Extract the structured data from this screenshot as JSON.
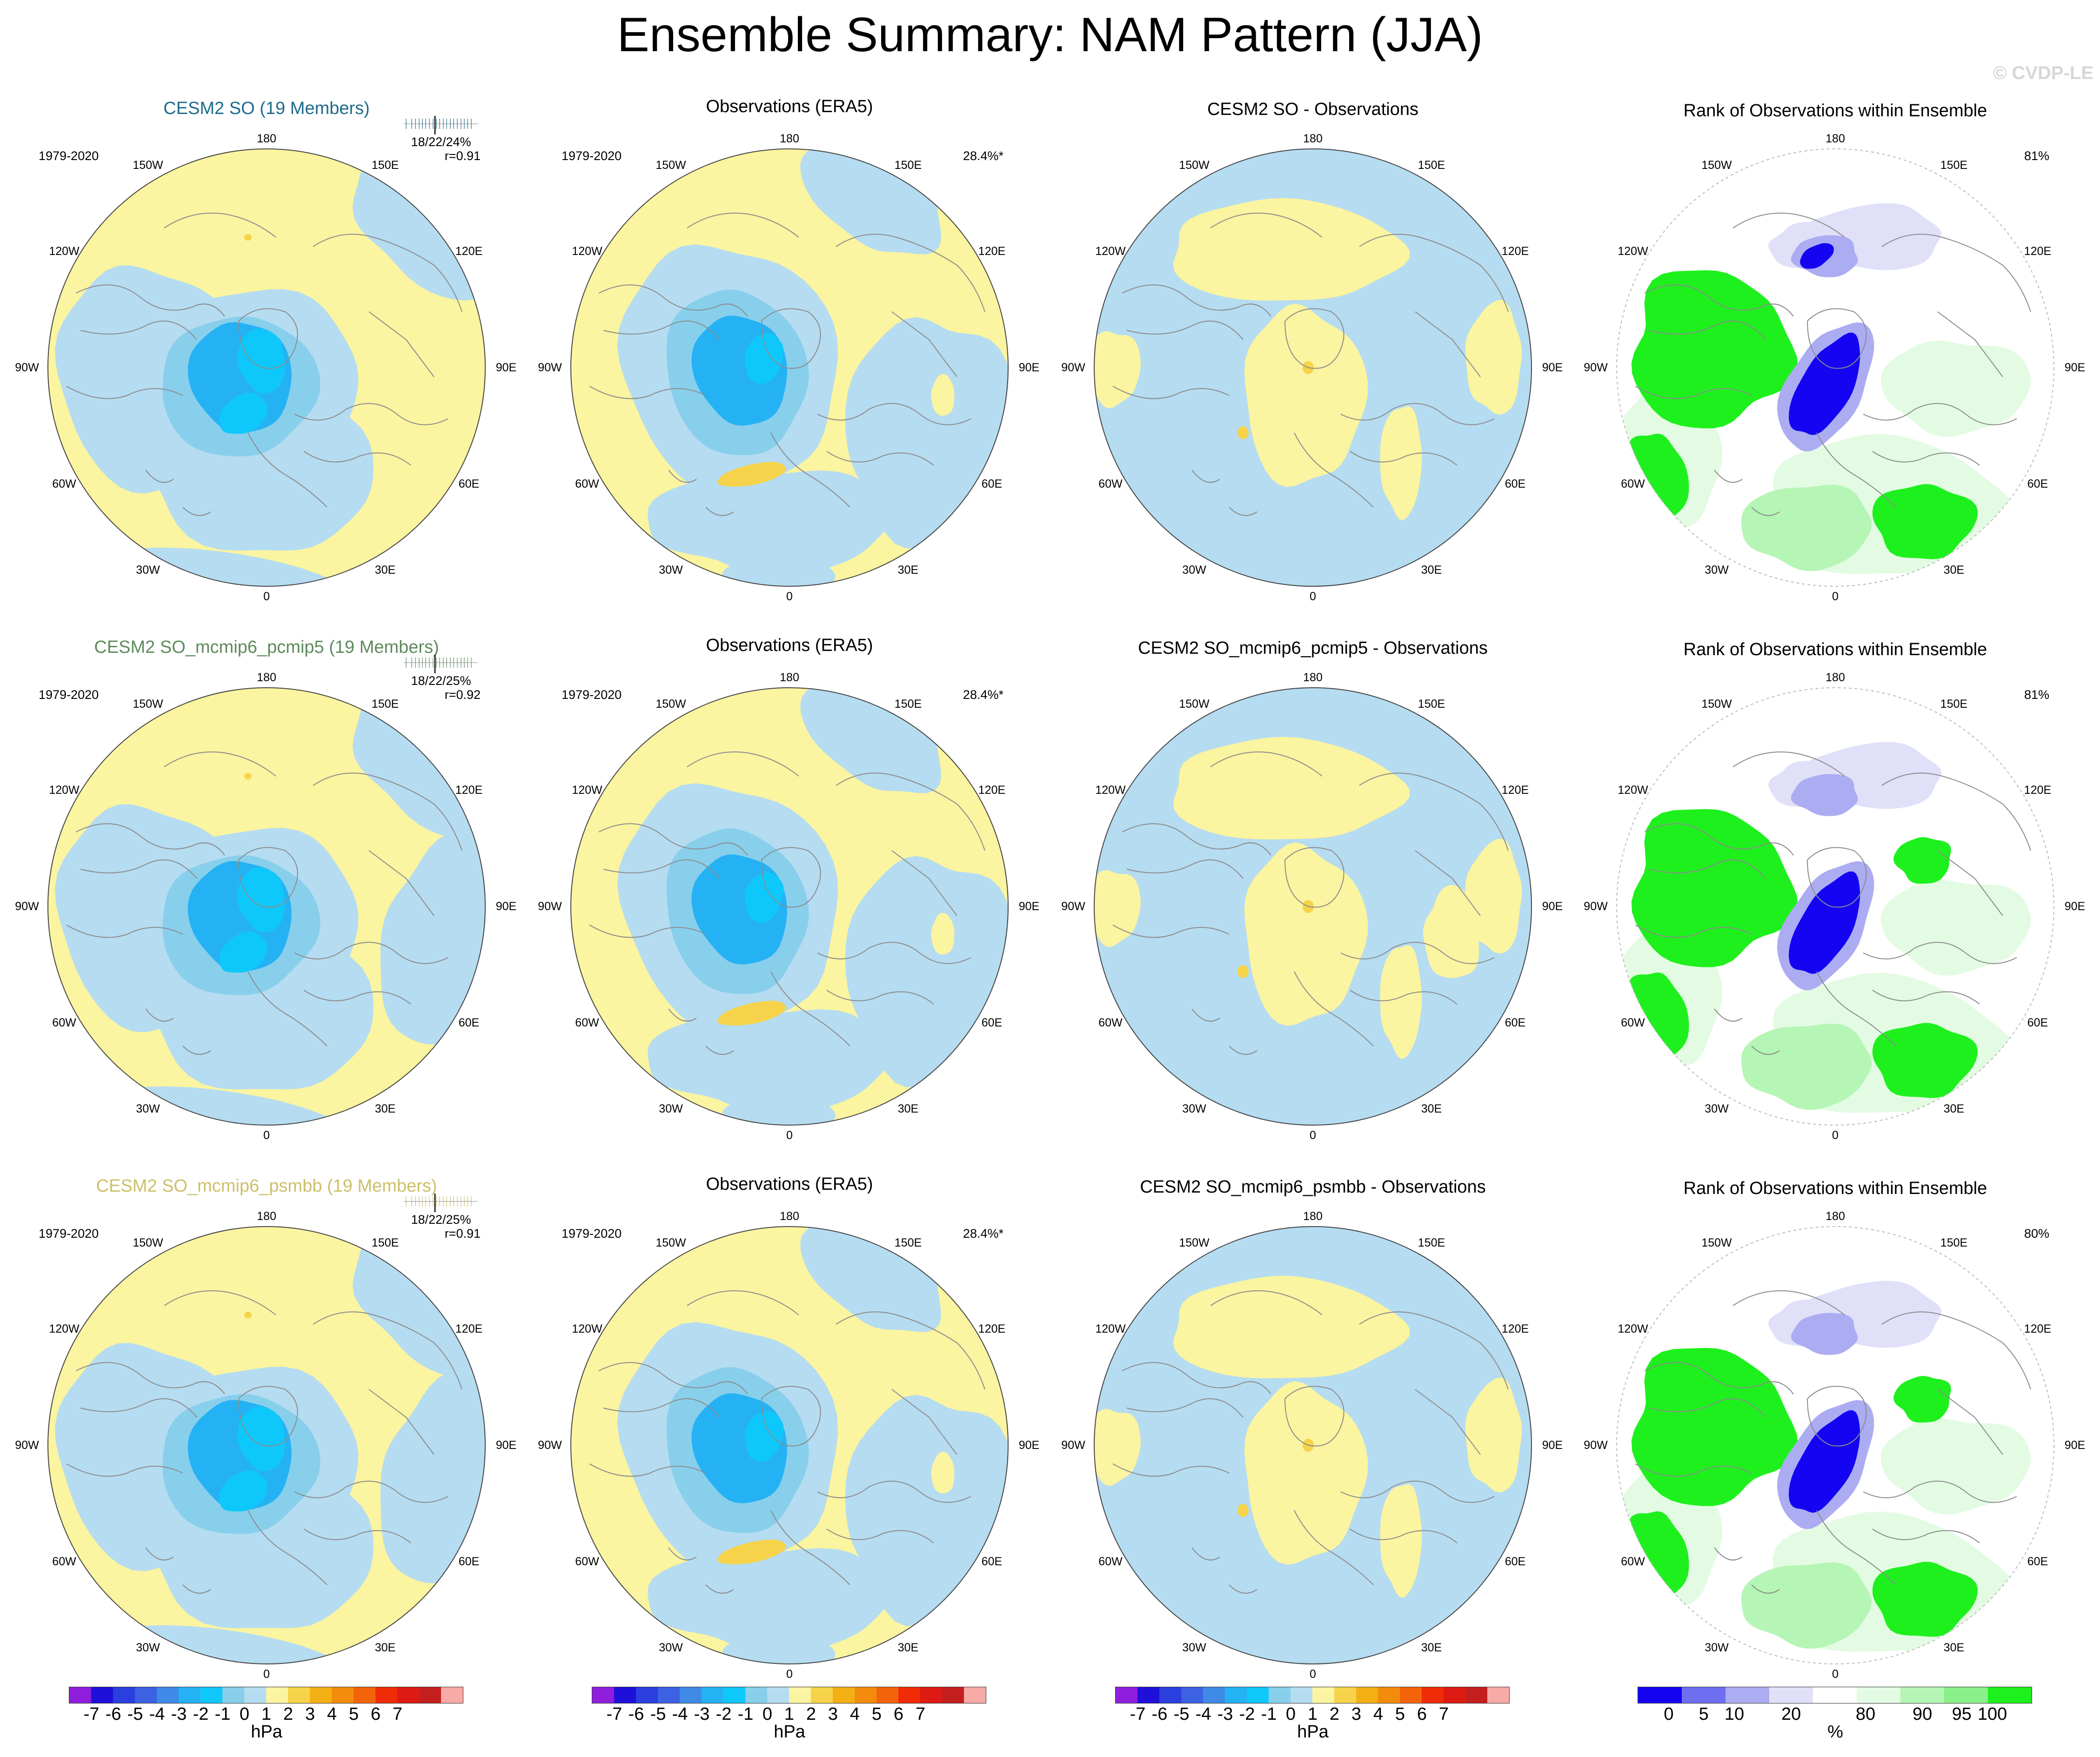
{
  "title": "Ensemble Summary: NAM Pattern (JJA)",
  "watermark": "© CVDP-LE",
  "colors": {
    "neg_fill": "#b5dcf1",
    "pos_fill": "#fbf4a0",
    "land_line": "#8c8c8c"
  },
  "lon_labels": {
    "north": "180",
    "south": "0",
    "west": "90W",
    "east": "90E",
    "nnw": "150W",
    "nne": "150E",
    "wnw": "120W",
    "ene": "120E",
    "wsw": "60W",
    "ese": "60E",
    "ssw": "30W",
    "sse": "30E"
  },
  "rows": [
    {
      "model": {
        "title": "CESM2 SO (19 Members)",
        "title_color": "#1f6b8a",
        "period": "1979-2020",
        "stats": "18/22/24%",
        "corr": "r=0.91"
      },
      "obs": {
        "title": "Observations (ERA5)",
        "period": "1979-2020",
        "pct": "28.4%*"
      },
      "diff": {
        "title": "CESM2 SO - Observations"
      },
      "rank": {
        "title": "Rank of Observations within Ensemble",
        "pct": "81%"
      }
    },
    {
      "model": {
        "title": "CESM2 SO_mcmip6_pcmip5 (19 Members)",
        "title_color": "#5f8a5c",
        "period": "1979-2020",
        "stats": "18/22/25%",
        "corr": "r=0.92"
      },
      "obs": {
        "title": "Observations (ERA5)",
        "period": "1979-2020",
        "pct": "28.4%*"
      },
      "diff": {
        "title": "CESM2 SO_mcmip6_pcmip5 - Observations"
      },
      "rank": {
        "title": "Rank of Observations within Ensemble",
        "pct": "81%"
      }
    },
    {
      "model": {
        "title": "CESM2 SO_mcmip6_psmbb (19 Members)",
        "title_color": "#cdbf6a",
        "period": "1979-2020",
        "stats": "18/22/25%",
        "corr": "r=0.91"
      },
      "obs": {
        "title": "Observations (ERA5)",
        "period": "1979-2020",
        "pct": "28.4%*"
      },
      "diff": {
        "title": "CESM2 SO_mcmip6_psmbb - Observations"
      },
      "rank": {
        "title": "Rank of Observations within Ensemble",
        "pct": "80%"
      }
    }
  ],
  "chart_data": {
    "type": "heatmap",
    "title": "Ensemble Summary: NAM Pattern (JJA)",
    "projection": "polar stereographic, Northern Hemisphere",
    "variable": "sea level pressure NAM pattern",
    "units": "hPa",
    "panels_per_row": [
      "model ensemble mean",
      "observations (ERA5)",
      "model minus observations",
      "rank of observations within ensemble"
    ],
    "hpa_colorbar": {
      "unit_label": "hPa",
      "tick_labels": [
        "-7",
        "-6",
        "-5",
        "-4",
        "-3",
        "-2",
        "-1",
        "0",
        "1",
        "2",
        "3",
        "4",
        "5",
        "6",
        "7"
      ],
      "colors": [
        "#8f1fdc",
        "#1f10d9",
        "#2a3fde",
        "#3d61e3",
        "#3f8ae6",
        "#25b2f4",
        "#0fc8fb",
        "#88cfec",
        "#b5dcf1",
        "#fbf4a0",
        "#f6d34a",
        "#f3b014",
        "#f38c0d",
        "#f3640a",
        "#ef2c05",
        "#de1a14",
        "#c41f1f",
        "#f8aaa6"
      ]
    },
    "rank_colorbar": {
      "unit_label": "%",
      "tick_labels": [
        "0",
        "5",
        "10",
        "20",
        "80",
        "90",
        "95",
        "100"
      ],
      "colors": [
        "#1404f2",
        "#6e6ef0",
        "#acacf2",
        "#e0e0f9",
        "#ffffff",
        "#e3fbe3",
        "#b5f5b5",
        "#8af08a",
        "#1ef01e"
      ]
    }
  }
}
